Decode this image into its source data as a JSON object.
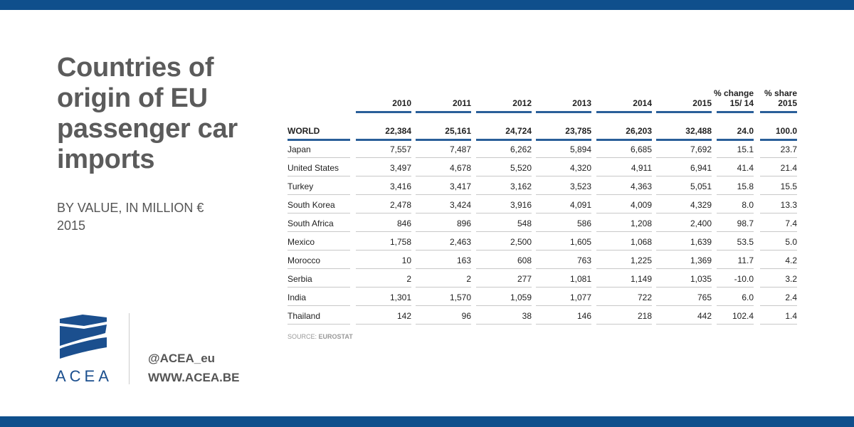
{
  "title": "Countries of origin of EU passenger car imports",
  "subtitle_line1": "BY VALUE, IN MILLION €",
  "subtitle_line2": "2015",
  "logo_text": "ACEA",
  "contact": {
    "twitter": "@ACEA_eu",
    "website": "WWW.ACEA.BE"
  },
  "source_label": "SOURCE:",
  "source_name": "EUROSTAT",
  "colors": {
    "accent": "#0f4f8c",
    "title": "#5b5b5b",
    "rule": "#2a5f99"
  },
  "chart_data": {
    "type": "table",
    "title": "Countries of origin of EU passenger car imports",
    "columns": [
      {
        "key": "y2010",
        "label_lines": [
          "",
          "2010"
        ]
      },
      {
        "key": "y2011",
        "label_lines": [
          "",
          "2011"
        ]
      },
      {
        "key": "y2012",
        "label_lines": [
          "",
          "2012"
        ]
      },
      {
        "key": "y2013",
        "label_lines": [
          "",
          "2013"
        ]
      },
      {
        "key": "y2014",
        "label_lines": [
          "",
          "2014"
        ]
      },
      {
        "key": "y2015",
        "label_lines": [
          "",
          "2015"
        ]
      },
      {
        "key": "change",
        "label_lines": [
          "% change",
          "15/ 14"
        ]
      },
      {
        "key": "share",
        "label_lines": [
          "% share",
          "2015"
        ]
      }
    ],
    "rows": [
      {
        "name": "WORLD",
        "values": [
          "22,384",
          "25,161",
          "24,724",
          "23,785",
          "26,203",
          "32,488",
          "24.0",
          "100.0"
        ]
      },
      {
        "name": "Japan",
        "values": [
          "7,557",
          "7,487",
          "6,262",
          "5,894",
          "6,685",
          "7,692",
          "15.1",
          "23.7"
        ]
      },
      {
        "name": "United States",
        "values": [
          "3,497",
          "4,678",
          "5,520",
          "4,320",
          "4,911",
          "6,941",
          "41.4",
          "21.4"
        ]
      },
      {
        "name": "Turkey",
        "values": [
          "3,416",
          "3,417",
          "3,162",
          "3,523",
          "4,363",
          "5,051",
          "15.8",
          "15.5"
        ]
      },
      {
        "name": "South Korea",
        "values": [
          "2,478",
          "3,424",
          "3,916",
          "4,091",
          "4,009",
          "4,329",
          "8.0",
          "13.3"
        ]
      },
      {
        "name": "South Africa",
        "values": [
          "846",
          "896",
          "548",
          "586",
          "1,208",
          "2,400",
          "98.7",
          "7.4"
        ]
      },
      {
        "name": "Mexico",
        "values": [
          "1,758",
          "2,463",
          "2,500",
          "1,605",
          "1,068",
          "1,639",
          "53.5",
          "5.0"
        ]
      },
      {
        "name": "Morocco",
        "values": [
          "10",
          "163",
          "608",
          "763",
          "1,225",
          "1,369",
          "11.7",
          "4.2"
        ]
      },
      {
        "name": "Serbia",
        "values": [
          "2",
          "2",
          "277",
          "1,081",
          "1,149",
          "1,035",
          "-10.0",
          "3.2"
        ]
      },
      {
        "name": "India",
        "values": [
          "1,301",
          "1,570",
          "1,059",
          "1,077",
          "722",
          "765",
          "6.0",
          "2.4"
        ]
      },
      {
        "name": "Thailand",
        "values": [
          "142",
          "96",
          "38",
          "146",
          "218",
          "442",
          "102.4",
          "1.4"
        ]
      }
    ]
  }
}
